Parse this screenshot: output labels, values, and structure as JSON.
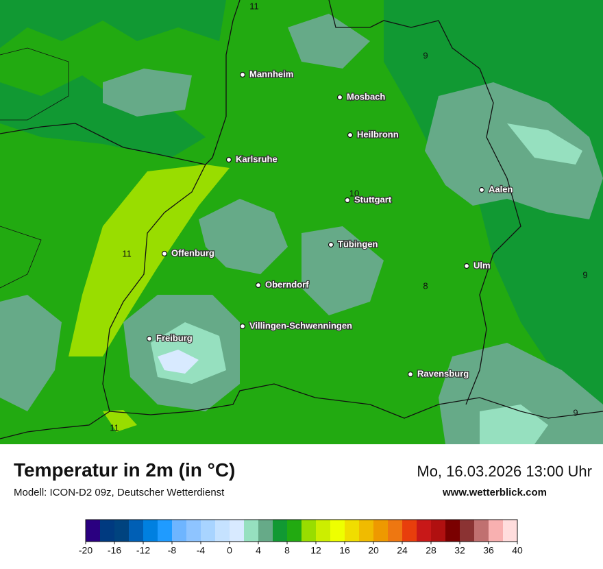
{
  "map": {
    "cities": [
      "Mannheim",
      "Mosbach",
      "Heilbronn",
      "Karlsruhe",
      "Aalen",
      "Stuttgart",
      "Tübingen",
      "Offenburg",
      "Ulm",
      "Oberndorf",
      "Villingen-Schwenningen",
      "Freiburg",
      "Ravensburg"
    ],
    "contour_labels": [
      11,
      9,
      10,
      11,
      8,
      9,
      11,
      9
    ]
  },
  "footer": {
    "title": "Temperatur in 2m (in °C)",
    "subtitle": "Modell: ICON-D2 09z, Deutscher Wetterdienst",
    "date": "Mo, 16.03.2026 13:00 Uhr",
    "website": "www.wetterblick.com"
  },
  "legend": {
    "colors": [
      "#2a0080",
      "#003a80",
      "#00437f",
      "#005fb5",
      "#0080e0",
      "#1f9bff",
      "#6eb5ff",
      "#8ec4ff",
      "#a8d4ff",
      "#c5e2ff",
      "#d8eaff",
      "#96e0bf",
      "#66aa88",
      "#119933",
      "#22aa11",
      "#99dd00",
      "#ccee00",
      "#eeff00",
      "#f0dd00",
      "#f0bb00",
      "#ee9900",
      "#ee7711",
      "#e83e0c",
      "#c81818",
      "#b01010",
      "#7a0000",
      "#8b3333",
      "#c07070",
      "#f8b0b0",
      "#ffdddd"
    ],
    "ticks": [
      -20,
      -16,
      -12,
      -8,
      -4,
      0,
      4,
      8,
      12,
      16,
      20,
      24,
      28,
      32,
      36,
      40
    ]
  }
}
